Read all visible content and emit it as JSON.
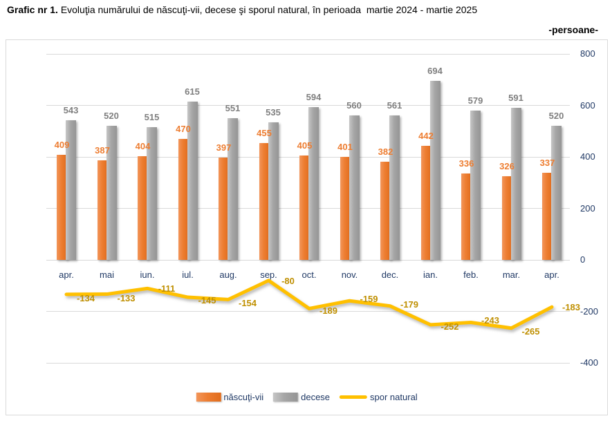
{
  "title": {
    "prefix": "Grafic nr 1.",
    "rest": "Evoluţia numărului de născuţi-vii, decese şi sporul natural, în perioada  martie 2024 - martie 2025"
  },
  "unit_label": "-persoane-",
  "colors": {
    "births": "#ED7D31",
    "deaths": "#A6A6A6",
    "natural_increase": "#FFC000",
    "births_label": "#ED7D31",
    "deaths_label": "#7F7F7F",
    "natural_increase_label": "#BF8F00",
    "axis_text": "#1F3864",
    "gridline": "#D9D9D9"
  },
  "chart_data": {
    "type": "combo",
    "categories": [
      "apr.",
      "mai",
      "iun.",
      "iul.",
      "aug.",
      "sep.",
      "oct.",
      "nov.",
      "dec.",
      "ian.",
      "feb.",
      "mar.",
      "apr."
    ],
    "series": [
      {
        "name": "născuţi-vii",
        "type": "bar",
        "color": "#ED7D31",
        "values": [
          409,
          387,
          404,
          470,
          397,
          455,
          405,
          401,
          382,
          442,
          336,
          326,
          337
        ]
      },
      {
        "name": "decese",
        "type": "bar",
        "color": "#A6A6A6",
        "values": [
          543,
          520,
          515,
          615,
          551,
          535,
          594,
          560,
          561,
          694,
          579,
          591,
          520
        ]
      },
      {
        "name": "spor natural",
        "type": "line",
        "color": "#FFC000",
        "values": [
          -134,
          -133,
          -111,
          -145,
          -154,
          -80,
          -189,
          -159,
          -179,
          -252,
          -243,
          -265,
          -183
        ]
      }
    ],
    "y_axis": {
      "min": -400,
      "max": 800,
      "step": 200,
      "tick_labels": [
        "800",
        "600",
        "400",
        "200",
        "0",
        "-200",
        "-400"
      ]
    },
    "grid": true,
    "data_labels": true,
    "legend_position": "bottom"
  }
}
